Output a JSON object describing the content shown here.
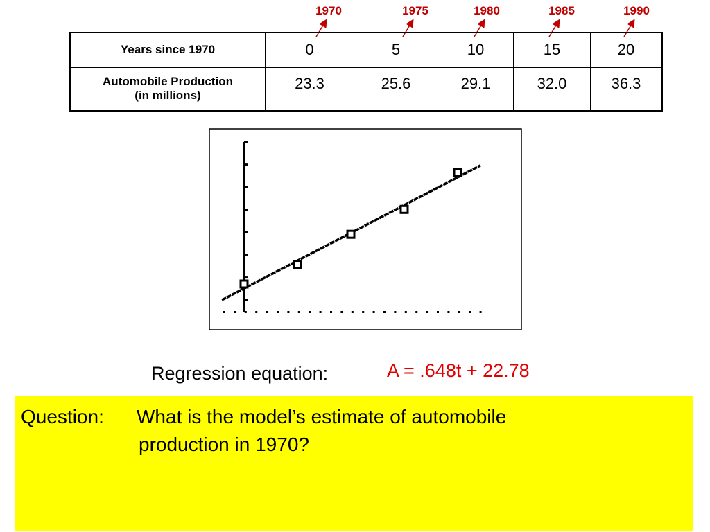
{
  "year_labels": [
    "1970",
    "1975",
    "1980",
    "1985",
    "1990"
  ],
  "table": {
    "rows": [
      {
        "header": [
          "Years since 1970"
        ],
        "cells": [
          "0",
          "5",
          "10",
          "15",
          "20"
        ]
      },
      {
        "header": [
          "Automobile Production",
          "(in millions)"
        ],
        "cells": [
          "23.3",
          "25.6",
          "29.1",
          "32.0",
          "36.3"
        ]
      }
    ]
  },
  "regression": {
    "label": "Regression equation:",
    "equation": "A = .648t + 22.78"
  },
  "question": {
    "label": "Question:",
    "lines": [
      "What is the model’s estimate of automobile",
      "production in 1970?"
    ]
  }
}
